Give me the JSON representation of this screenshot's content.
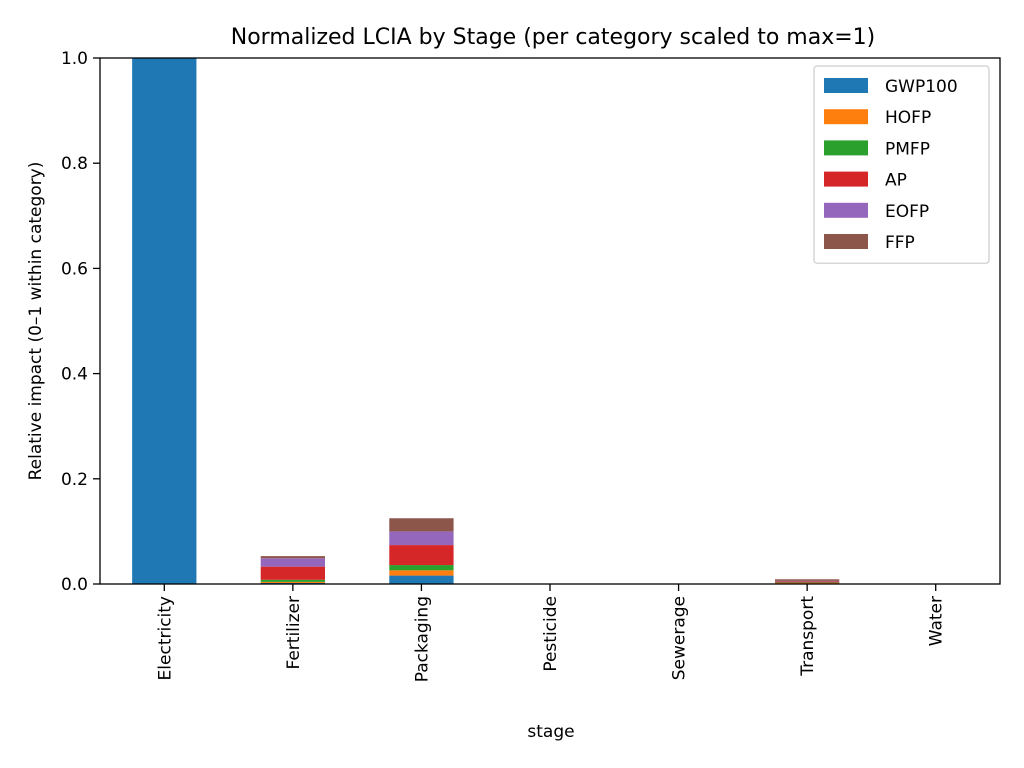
{
  "chart_data": {
    "type": "bar",
    "stacked": true,
    "title": "Normalized LCIA by Stage (per category scaled to max=1)",
    "xlabel": "stage",
    "ylabel": "Relative impact (0–1 within category)",
    "ylim": [
      0,
      1
    ],
    "yticks": [
      "0.0",
      "0.2",
      "0.4",
      "0.6",
      "0.8",
      "1.0"
    ],
    "categories": [
      "Electricity",
      "Fertilizer",
      "Packaging",
      "Pesticide",
      "Sewerage",
      "Transport",
      "Water"
    ],
    "legend_position": "top-right",
    "grid": false,
    "series": [
      {
        "name": "GWP100",
        "color": "#1f77b4",
        "values": [
          1.0,
          0.002,
          0.016,
          0.0,
          0.0,
          0.001,
          0.0
        ]
      },
      {
        "name": "HOFP",
        "color": "#ff7f0e",
        "values": [
          0.0,
          0.002,
          0.01,
          0.0,
          0.0,
          0.001,
          0.0
        ]
      },
      {
        "name": "PMFP",
        "color": "#2ca02c",
        "values": [
          0.0,
          0.004,
          0.01,
          0.0,
          0.0,
          0.001,
          0.0
        ]
      },
      {
        "name": "AP",
        "color": "#d62728",
        "values": [
          0.0,
          0.025,
          0.038,
          0.0,
          0.0,
          0.002,
          0.0
        ]
      },
      {
        "name": "EOFP",
        "color": "#9467bd",
        "values": [
          0.0,
          0.016,
          0.026,
          0.0,
          0.0,
          0.001,
          0.0
        ]
      },
      {
        "name": "FFP",
        "color": "#8c564b",
        "values": [
          0.0,
          0.004,
          0.025,
          0.0,
          0.0,
          0.003,
          0.0
        ]
      }
    ]
  }
}
